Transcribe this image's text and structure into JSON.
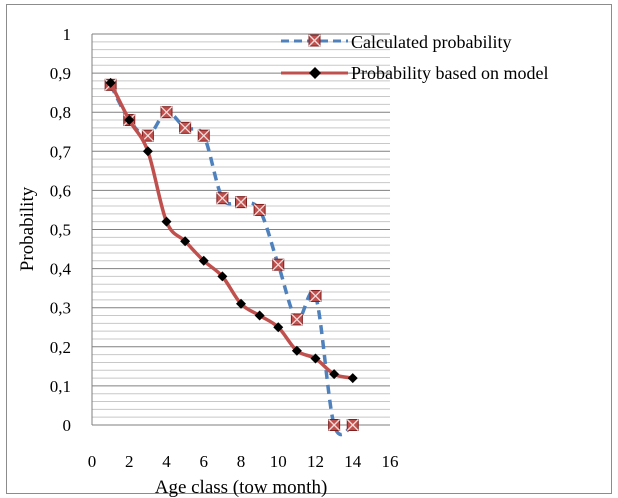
{
  "chart_data": {
    "type": "line",
    "xlabel": "Age class (tow month)",
    "ylabel": "Probability",
    "xlim": [
      0,
      16
    ],
    "ylim": [
      0,
      1
    ],
    "x_ticks": [
      0,
      2,
      4,
      6,
      8,
      10,
      12,
      14,
      16
    ],
    "x_tick_labels": [
      "0",
      "2",
      "4",
      "6",
      "8",
      "10",
      "12",
      "14",
      "16"
    ],
    "y_ticks": [
      0,
      0.1,
      0.2,
      0.3,
      0.4,
      0.5,
      0.6,
      0.7,
      0.8,
      0.9,
      1
    ],
    "y_tick_labels": [
      "0",
      "0,1",
      "0,2",
      "0,3",
      "0,4",
      "0,5",
      "0,6",
      "0,7",
      "0,8",
      "0,9",
      "1"
    ],
    "grid": true,
    "legend_position": "top-right",
    "series": [
      {
        "name": "Calculated probability",
        "color": "#4f81bd",
        "marker_color": "#c0504d",
        "line_style": "dashed",
        "marker": "square-x",
        "x": [
          1,
          2,
          3,
          4,
          5,
          6,
          7,
          8,
          9,
          10,
          11,
          12,
          13,
          14
        ],
        "y": [
          0.87,
          0.78,
          0.74,
          0.8,
          0.76,
          0.74,
          0.58,
          0.57,
          0.55,
          0.41,
          0.27,
          0.33,
          0,
          0
        ]
      },
      {
        "name": "Probability based on model",
        "color": "#c0504d",
        "marker_color": "#000000",
        "line_style": "solid",
        "marker": "diamond",
        "x": [
          1,
          2,
          3,
          4,
          5,
          6,
          7,
          8,
          9,
          10,
          11,
          12,
          13,
          14
        ],
        "y": [
          0.875,
          0.78,
          0.7,
          0.52,
          0.47,
          0.42,
          0.38,
          0.31,
          0.28,
          0.25,
          0.19,
          0.17,
          0.13,
          0.12
        ]
      }
    ]
  }
}
